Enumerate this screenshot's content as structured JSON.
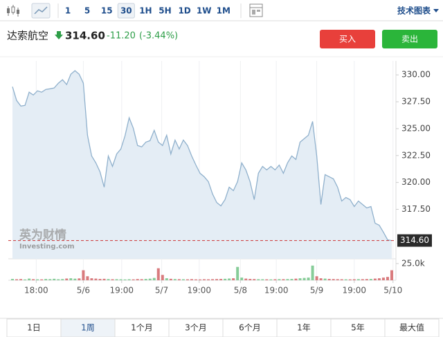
{
  "toolbar": {
    "intervals": [
      "1",
      "5",
      "15",
      "30",
      "1H",
      "5H",
      "1D",
      "1W",
      "1M"
    ],
    "selected": 3,
    "link": "技术图表"
  },
  "header": {
    "name": "达索航空",
    "price": "314.60",
    "change": "-11.20",
    "change_pct": "(-3.44%)",
    "buy": "买入",
    "sell": "卖出"
  },
  "chart_data": {
    "type": "area",
    "watermark": [
      "英为财情",
      "Investing.com"
    ],
    "x": [
      0,
      1,
      2,
      3,
      4,
      5,
      6,
      7,
      8,
      9,
      10,
      11,
      12,
      13,
      14,
      15,
      16,
      17,
      18,
      19,
      20,
      21,
      22,
      23,
      24,
      25,
      26,
      27,
      28,
      29,
      30,
      31,
      32,
      33,
      34,
      35,
      36,
      37,
      38,
      39,
      40,
      41,
      42,
      43,
      44,
      45,
      46,
      47,
      48,
      49,
      50,
      51,
      52,
      53,
      54,
      55,
      56,
      57,
      58,
      59,
      60,
      61,
      62,
      63,
      64,
      65,
      66,
      67,
      68,
      69,
      70,
      71,
      72,
      73,
      74,
      75,
      76,
      77,
      78,
      79,
      80,
      81,
      82,
      83,
      84,
      85,
      86,
      87,
      88,
      89,
      90,
      91
    ],
    "values": [
      328.9,
      327.62,
      327.1,
      327.16,
      328.39,
      328.13,
      328.52,
      328.39,
      328.65,
      328.71,
      328.78,
      329.23,
      329.55,
      329.1,
      330.06,
      330.39,
      330.06,
      329.23,
      324.39,
      322.46,
      321.82,
      320.98,
      319.56,
      322.46,
      321.49,
      322.65,
      323.11,
      324.33,
      326.01,
      325.04,
      323.43,
      323.3,
      323.75,
      323.88,
      324.85,
      323.75,
      323.43,
      324.39,
      322.65,
      323.94,
      323.11,
      323.94,
      323.43,
      322.46,
      321.62,
      320.85,
      320.53,
      320.08,
      318.92,
      318.14,
      317.82,
      318.4,
      319.56,
      319.24,
      320.08,
      321.82,
      321.17,
      320.08,
      318.4,
      320.85,
      321.49,
      321.17,
      321.49,
      321.17,
      321.62,
      320.85,
      321.82,
      322.46,
      322.14,
      323.75,
      324.07,
      324.39,
      325.68,
      322.46,
      317.95,
      320.72,
      320.53,
      320.33,
      319.56,
      318.27,
      318.6,
      318.4,
      317.76,
      318.27,
      317.95,
      317.63,
      317.76,
      316.21,
      316.02,
      315.37,
      314.66,
      314.6
    ],
    "color": "#8fb0cc",
    "fill": "#e4edf5",
    "xlim": [
      -1,
      92
    ],
    "xticks": [
      {
        "value": 5.7,
        "label": "18:00"
      },
      {
        "value": 17,
        "label": "5/6"
      },
      {
        "value": 26.2,
        "label": "19:00"
      },
      {
        "value": 35.8,
        "label": "5/7"
      },
      {
        "value": 44.8,
        "label": "19:00"
      },
      {
        "value": 54.7,
        "label": "5/8"
      },
      {
        "value": 63.3,
        "label": "19:00"
      },
      {
        "value": 73,
        "label": "5/9"
      },
      {
        "value": 82,
        "label": "19:00"
      },
      {
        "value": 91.3,
        "label": "5/10"
      }
    ],
    "ylim": [
      312.9,
      331.3
    ],
    "yticks": [
      {
        "value": 317.5,
        "label": "317.50"
      },
      {
        "value": 320,
        "label": "320.00"
      },
      {
        "value": 322.5,
        "label": "322.50"
      },
      {
        "value": 325,
        "label": "325.00"
      },
      {
        "value": 327.5,
        "label": "327.50"
      },
      {
        "value": 330,
        "label": "330.00"
      }
    ],
    "last_price": {
      "value": 314.6,
      "label": "314.60"
    },
    "volume": {
      "values": [
        2000,
        1500,
        1800,
        1200,
        2500,
        1600,
        1400,
        1300,
        1900,
        1700,
        2200,
        1500,
        1800,
        2600,
        3000,
        2400,
        2800,
        15000,
        6000,
        3000,
        2500,
        2000,
        2200,
        1800,
        1500,
        1600,
        1400,
        1200,
        1500,
        1300,
        1800,
        1600,
        2000,
        2400,
        3500,
        18000,
        8000,
        3000,
        2200,
        1800,
        1600,
        1500,
        1400,
        1700,
        1300,
        1200,
        1500,
        1400,
        1600,
        1800,
        2000,
        2200,
        2600,
        3000,
        20000,
        4000,
        2500,
        2000,
        1800,
        1600,
        1500,
        1400,
        1300,
        1500,
        1700,
        1600,
        1800,
        2000,
        2400,
        3000,
        3500,
        4000,
        22000,
        6000,
        3000,
        2500,
        2000,
        1800,
        1600,
        1500,
        1400,
        1300,
        1500,
        1700,
        1600,
        1800,
        2000,
        2500,
        3000,
        4000,
        5000,
        15000
      ],
      "ylim": [
        0,
        28000
      ],
      "yticks": [
        {
          "value": 25000,
          "label": "25.0k"
        }
      ],
      "up_color": "#86cc98",
      "down_color": "#d97b7e"
    }
  },
  "range_tabs": {
    "items": [
      "1日",
      "1周",
      "1个月",
      "3个月",
      "6个月",
      "1年",
      "5年",
      "最大值"
    ],
    "selected": 1
  }
}
